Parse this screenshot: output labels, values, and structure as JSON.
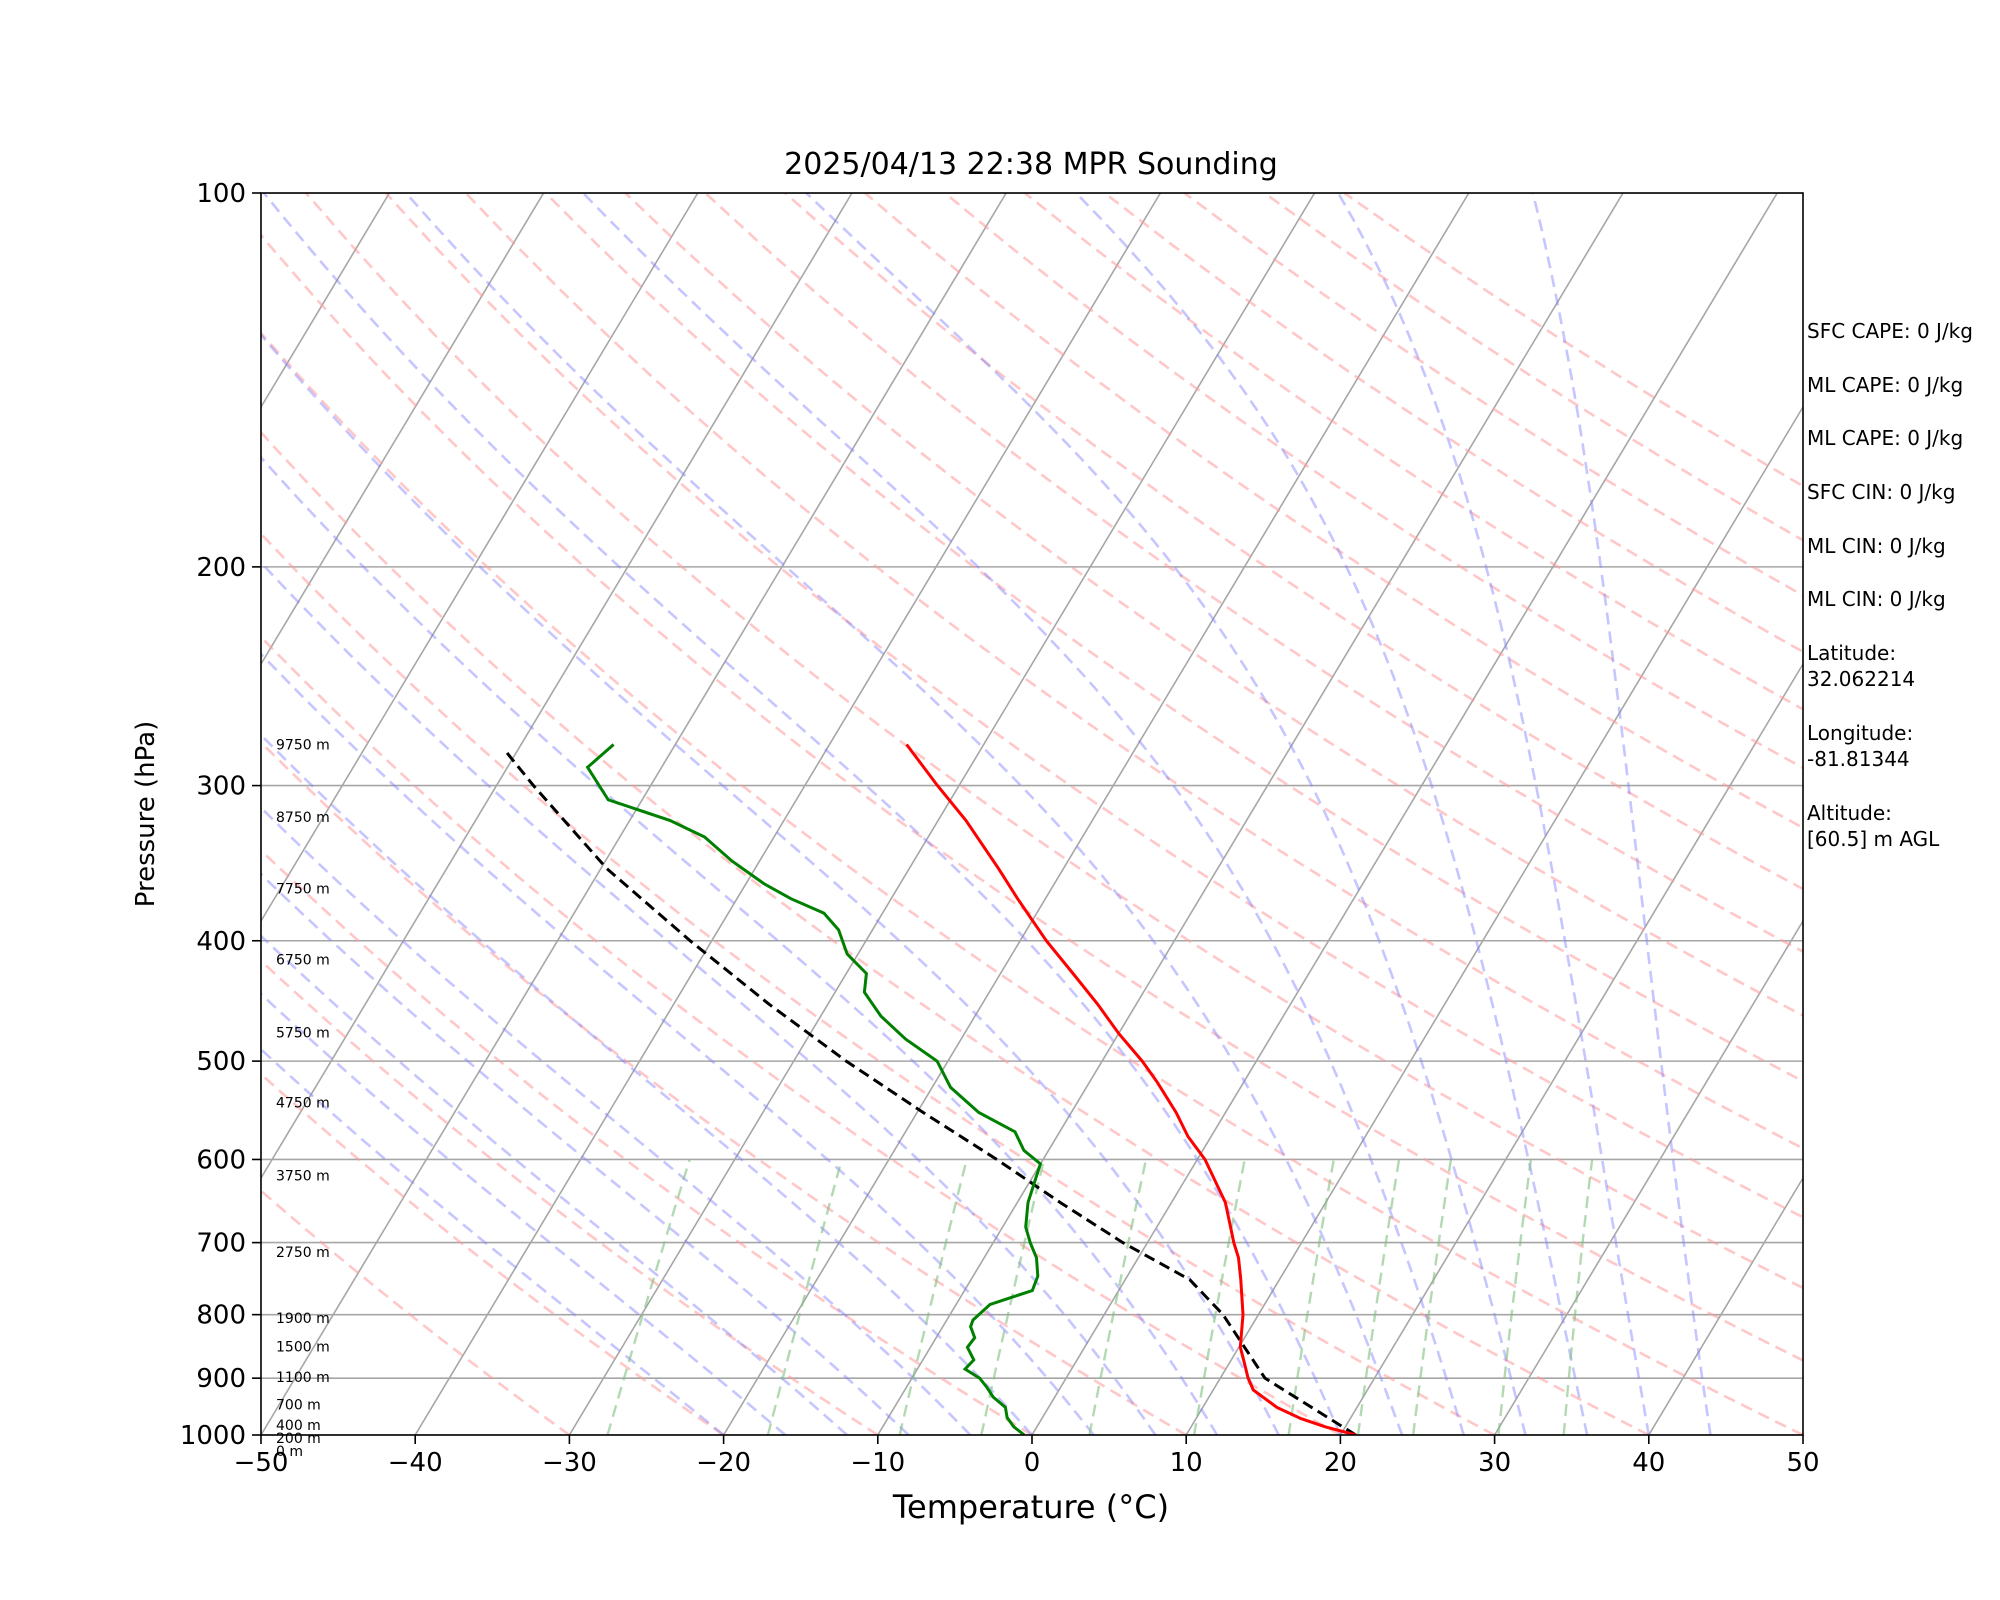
{
  "chart_data": {
    "type": "line",
    "title": "2025/04/13 22:38 MPR Sounding",
    "xlabel": "Temperature (°C)",
    "ylabel": "Pressure (hPa)",
    "xlim": [
      -50,
      50
    ],
    "ylim": [
      1000,
      100
    ],
    "y_scale": "log",
    "skew": true,
    "grid": true,
    "x_ticks": [
      "−50",
      "−40",
      "−30",
      "−20",
      "−10",
      "0",
      "10",
      "20",
      "30",
      "40",
      "50"
    ],
    "x_tick_values": [
      -50,
      -40,
      -30,
      -20,
      -10,
      0,
      10,
      20,
      30,
      40,
      50
    ],
    "y_ticks": [
      "100",
      "200",
      "300",
      "400",
      "500",
      "600",
      "700",
      "800",
      "900",
      "1000"
    ],
    "y_tick_values": [
      100,
      200,
      300,
      400,
      500,
      600,
      700,
      800,
      900,
      1000
    ],
    "height_labels": [
      {
        "text": "9750 m",
        "p": 278
      },
      {
        "text": "8750 m",
        "p": 318
      },
      {
        "text": "7750 m",
        "p": 363
      },
      {
        "text": "6750 m",
        "p": 414
      },
      {
        "text": "5750 m",
        "p": 474
      },
      {
        "text": "4750 m",
        "p": 540
      },
      {
        "text": "3750 m",
        "p": 618
      },
      {
        "text": "2750 m",
        "p": 712
      },
      {
        "text": "1900 m",
        "p": 805
      },
      {
        "text": "1500 m",
        "p": 849
      },
      {
        "text": "1100 m",
        "p": 898
      },
      {
        "text": "700 m",
        "p": 945
      },
      {
        "text": "400 m",
        "p": 982
      },
      {
        "text": "200 m",
        "p": 1006
      },
      {
        "text": "0 m",
        "p": 1030
      }
    ],
    "temperature": {
      "color": "#ff0000",
      "p": [
        1000,
        985,
        970,
        950,
        920,
        900,
        870,
        850,
        800,
        750,
        720,
        700,
        650,
        600,
        575,
        550,
        520,
        500,
        475,
        450,
        425,
        400,
        370,
        350,
        320,
        300,
        278
      ],
      "t": [
        21,
        18.7,
        16.8,
        14.8,
        12.6,
        11.8,
        10.8,
        10.1,
        9,
        7.5,
        6.5,
        5.6,
        3.5,
        0.5,
        -1.5,
        -3.2,
        -5.6,
        -7.4,
        -10,
        -12.5,
        -15.3,
        -18.3,
        -21.8,
        -24.2,
        -28.2,
        -31.4,
        -35
      ]
    },
    "dewpoint": {
      "color": "#008000",
      "p": [
        1000,
        985,
        968,
        950,
        932,
        915,
        900,
        885,
        870,
        850,
        835,
        818,
        808,
        785,
        765,
        745,
        720,
        700,
        680,
        650,
        605,
        590,
        570,
        550,
        525,
        500,
        480,
        460,
        440,
        425,
        410,
        392,
        380,
        370,
        360,
        345,
        330,
        320,
        308,
        290,
        278
      ],
      "td": [
        -0.5,
        -1.5,
        -2.3,
        -2.8,
        -4,
        -4.8,
        -5.6,
        -6.9,
        -6.7,
        -7.6,
        -7.5,
        -8.2,
        -8.3,
        -7.8,
        -5.6,
        -5.8,
        -6.6,
        -7.6,
        -8.5,
        -9.3,
        -10,
        -11.6,
        -12.9,
        -16,
        -18.8,
        -20.7,
        -23.6,
        -26.1,
        -28.1,
        -28.7,
        -30.7,
        -32.2,
        -33.8,
        -36.5,
        -38.8,
        -41.8,
        -44.5,
        -47.4,
        -52.2,
        -54.8,
        -54
      ]
    },
    "parcel": {
      "color": "#000000",
      "style": "dashed",
      "p": [
        1000,
        900,
        800,
        750,
        700,
        650,
        600,
        550,
        500,
        450,
        400,
        350,
        300,
        280
      ],
      "t": [
        21,
        12.9,
        7.7,
        4.2,
        -1.6,
        -7.2,
        -13,
        -19.6,
        -26.6,
        -33.8,
        -41.4,
        -49.6,
        -57.6,
        -61
      ]
    },
    "dry_adiabats_color": "#ff9999",
    "moist_adiabats_color": "#8080ff",
    "mixing_ratio_color": "#80c080",
    "isotherm_color": "#a6a6a6"
  },
  "indices": [
    "SFC CAPE: 0 J/kg",
    "ML CAPE: 0 J/kg",
    "ML CAPE: 0 J/kg",
    "SFC CIN: 0 J/kg",
    "ML CIN: 0 J/kg",
    "ML CIN: 0 J/kg"
  ],
  "location": [
    "Latitude:\n32.062214",
    "Longitude:\n-81.81344",
    "Altitude:\n[60.5] m AGL"
  ]
}
